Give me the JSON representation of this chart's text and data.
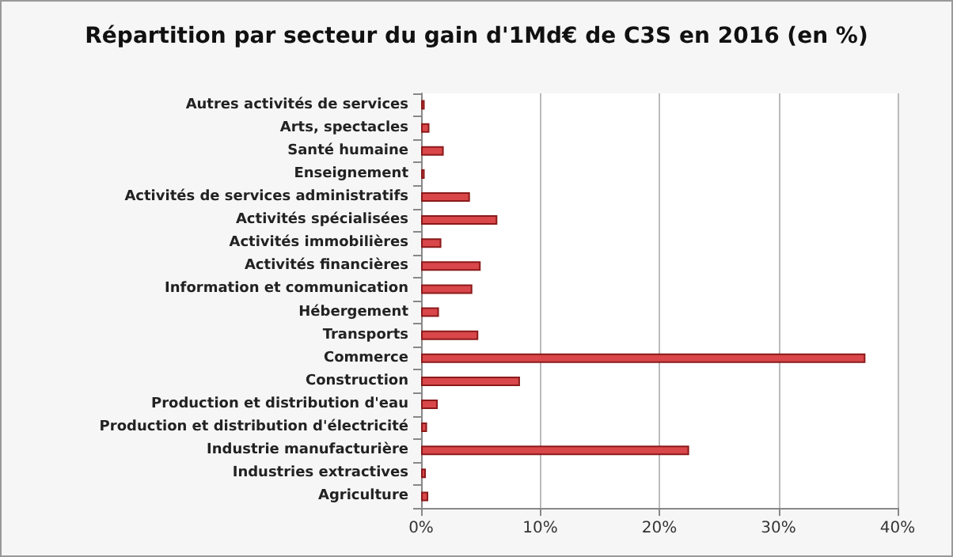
{
  "chart_data": {
    "type": "bar",
    "orientation": "horizontal",
    "title": "Répartition par secteur du gain d'1Md€ de C3S en 2016 (en %)",
    "categories": [
      "Autres activités de services",
      "Arts, spectacles",
      "Santé humaine",
      "Enseignement",
      "Activités de services administratifs",
      "Activités spécialisées",
      "Activités immobilières",
      "Activités financières",
      "Information et communication",
      "Hébergement",
      "Transports",
      "Commerce",
      "Construction",
      "Production et distribution d'eau",
      "Production et distribution d'électricité",
      "Industrie manufacturière",
      "Industries extractives",
      "Agriculture"
    ],
    "values": [
      0.3,
      0.7,
      1.9,
      0.3,
      4.1,
      6.4,
      1.7,
      5.0,
      4.3,
      1.5,
      4.8,
      37.3,
      8.3,
      1.4,
      0.5,
      22.5,
      0.4,
      0.6
    ],
    "color": "#d9474a",
    "xlim": [
      0,
      40
    ],
    "xticks": [
      {
        "value": 0,
        "label": "0%"
      },
      {
        "value": 10,
        "label": "10%"
      },
      {
        "value": 20,
        "label": "20%"
      },
      {
        "value": 30,
        "label": "30%"
      },
      {
        "value": 40,
        "label": "40%"
      }
    ],
    "grid": "x"
  }
}
